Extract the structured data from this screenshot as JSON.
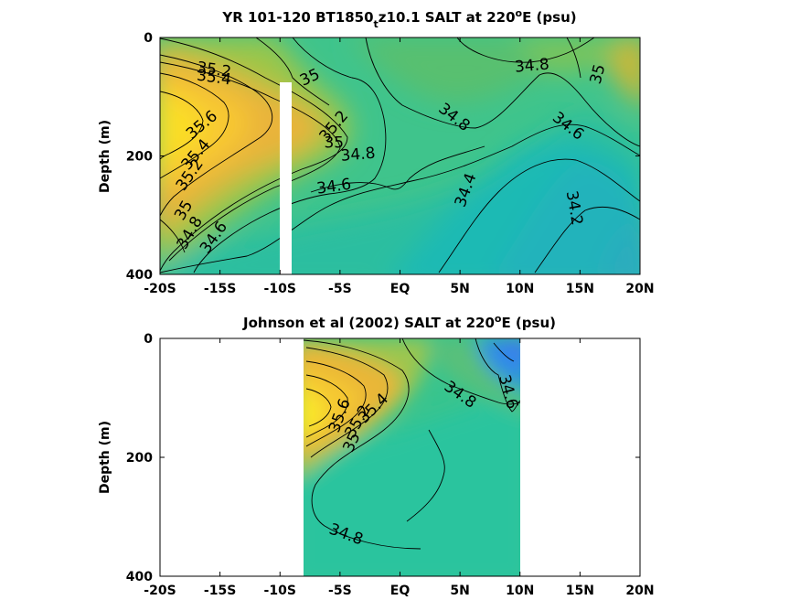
{
  "chart_data": [
    {
      "type": "heatmap",
      "title_main": "YR 101-120 BT1850",
      "title_sub": "t",
      "title_rest": "z10.1 SALT at 220",
      "title_sup": "o",
      "title_end": "E (psu)",
      "ylabel": "Depth (m)",
      "xlim": [
        -20,
        20
      ],
      "ylim": [
        400,
        0
      ],
      "xticks": [
        -20,
        -15,
        -10,
        -5,
        0,
        5,
        10,
        15,
        20
      ],
      "xtick_labels": [
        "-20S",
        "-15S",
        "-10S",
        "-5S",
        "EQ",
        "5N",
        "10N",
        "15N",
        "20N"
      ],
      "yticks": [
        0,
        200,
        400
      ],
      "ytick_labels": [
        "0",
        "200",
        "400"
      ],
      "data_lon_range": [
        -20,
        20
      ],
      "gap": {
        "lon": -9.5,
        "depth_from": 75,
        "depth_to": 400
      },
      "contour_labels": [
        {
          "text": "35.2",
          "lon": -15.5,
          "depth": 55,
          "angle": 8
        },
        {
          "text": "35.4",
          "lon": -15.5,
          "depth": 68,
          "angle": 8
        },
        {
          "text": "35",
          "lon": -7.5,
          "depth": 68,
          "angle": -25
        },
        {
          "text": "34.8",
          "lon": 11,
          "depth": 48,
          "angle": -5
        },
        {
          "text": "35",
          "lon": 16.5,
          "depth": 62,
          "angle": -75
        },
        {
          "text": "35.6",
          "lon": -16.5,
          "depth": 148,
          "angle": -40
        },
        {
          "text": "34.8",
          "lon": 4.5,
          "depth": 135,
          "angle": 38
        },
        {
          "text": "35.2",
          "lon": -5.5,
          "depth": 150,
          "angle": -50
        },
        {
          "text": "34.6",
          "lon": 14,
          "depth": 150,
          "angle": 38
        },
        {
          "text": "35",
          "lon": -5.5,
          "depth": 178,
          "angle": 0
        },
        {
          "text": "34.8",
          "lon": -3.5,
          "depth": 198,
          "angle": -5
        },
        {
          "text": "35.4",
          "lon": -17,
          "depth": 198,
          "angle": -50
        },
        {
          "text": "35.2",
          "lon": -17.5,
          "depth": 232,
          "angle": -55
        },
        {
          "text": "34.6",
          "lon": -5.5,
          "depth": 252,
          "angle": -8
        },
        {
          "text": "34.4",
          "lon": 5.5,
          "depth": 258,
          "angle": -70
        },
        {
          "text": "35",
          "lon": -18,
          "depth": 292,
          "angle": -60
        },
        {
          "text": "34.8",
          "lon": -17.5,
          "depth": 330,
          "angle": -60
        },
        {
          "text": "34.2",
          "lon": 14.5,
          "depth": 288,
          "angle": 80
        },
        {
          "text": "34.6",
          "lon": -15.5,
          "depth": 338,
          "angle": -55
        }
      ]
    },
    {
      "type": "heatmap",
      "title_main": "Johnson et al (2002) SALT at 220",
      "title_sup": "o",
      "title_end": "E (psu)",
      "ylabel": "Depth (m)",
      "xlim": [
        -20,
        20
      ],
      "ylim": [
        400,
        0
      ],
      "xticks": [
        -20,
        -15,
        -10,
        -5,
        0,
        5,
        10,
        15,
        20
      ],
      "xtick_labels": [
        "-20S",
        "-15S",
        "-10S",
        "-5S",
        "EQ",
        "5N",
        "10N",
        "15N",
        "20N"
      ],
      "yticks": [
        0,
        200,
        400
      ],
      "ytick_labels": [
        "0",
        "200",
        "400"
      ],
      "data_lon_range": [
        -8,
        10
      ],
      "contour_labels": [
        {
          "text": "34.8",
          "lon": 5,
          "depth": 95,
          "angle": 35
        },
        {
          "text": "34.6",
          "lon": 9,
          "depth": 90,
          "angle": 75
        },
        {
          "text": "35.4",
          "lon": -2.2,
          "depth": 118,
          "angle": -45
        },
        {
          "text": "35.6",
          "lon": -5,
          "depth": 130,
          "angle": -70
        },
        {
          "text": "35.2",
          "lon": -3.5,
          "depth": 140,
          "angle": -60
        },
        {
          "text": "35",
          "lon": -4,
          "depth": 175,
          "angle": -65
        },
        {
          "text": "34.8",
          "lon": -4.5,
          "depth": 330,
          "angle": 20
        }
      ]
    }
  ]
}
